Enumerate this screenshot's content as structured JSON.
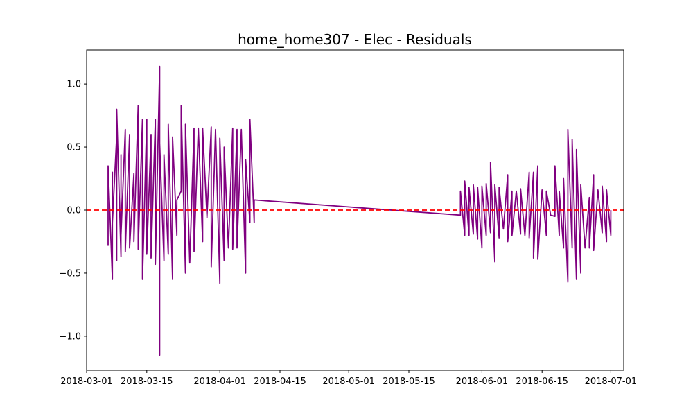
{
  "chart_data": {
    "type": "line",
    "title": "home_home307 - Elec - Residuals",
    "xlabel": "",
    "ylabel": "",
    "x_axis_type": "date",
    "xlim": [
      "2018-03-01",
      "2018-07-04"
    ],
    "ylim": [
      -1.27,
      1.27
    ],
    "x_ticks": [
      "2018-03-01",
      "2018-03-15",
      "2018-04-01",
      "2018-04-15",
      "2018-05-01",
      "2018-05-15",
      "2018-06-01",
      "2018-06-15",
      "2018-07-01"
    ],
    "y_ticks": [
      1.0,
      0.5,
      0.0,
      -0.5,
      -1.0
    ],
    "y_tick_labels": [
      "1.0",
      "0.5",
      "0.0",
      "−0.5",
      "−1.0"
    ],
    "grid": false,
    "series": [
      {
        "color": "#800080",
        "points": [
          [
            "2018-03-06",
            0.0
          ],
          [
            "2018-03-06",
            -0.28
          ],
          [
            "2018-03-06",
            0.35
          ],
          [
            "2018-03-07",
            -0.55
          ],
          [
            "2018-03-07",
            0.3
          ],
          [
            "2018-03-07",
            -0.1
          ],
          [
            "2018-03-08",
            0.59
          ],
          [
            "2018-03-08",
            -0.4
          ],
          [
            "2018-03-08",
            0.8
          ],
          [
            "2018-03-09",
            -0.37
          ],
          [
            "2018-03-09",
            0.44
          ],
          [
            "2018-03-09",
            -0.2
          ],
          [
            "2018-03-10",
            0.64
          ],
          [
            "2018-03-10",
            -0.33
          ],
          [
            "2018-03-11",
            0.6
          ],
          [
            "2018-03-11",
            -0.3
          ],
          [
            "2018-03-12",
            0.29
          ],
          [
            "2018-03-12",
            -0.25
          ],
          [
            "2018-03-13",
            0.83
          ],
          [
            "2018-03-13",
            -0.31
          ],
          [
            "2018-03-14",
            0.72
          ],
          [
            "2018-03-14",
            -0.55
          ],
          [
            "2018-03-15",
            0.72
          ],
          [
            "2018-03-15",
            -0.35
          ],
          [
            "2018-03-16",
            0.6
          ],
          [
            "2018-03-16",
            -0.38
          ],
          [
            "2018-03-17",
            0.72
          ],
          [
            "2018-03-17",
            -0.43
          ],
          [
            "2018-03-18",
            1.14
          ],
          [
            "2018-03-18",
            -1.15
          ],
          [
            "2018-03-18",
            0.53
          ],
          [
            "2018-03-19",
            -0.4
          ],
          [
            "2018-03-19",
            0.44
          ],
          [
            "2018-03-20",
            -0.35
          ],
          [
            "2018-03-20",
            0.68
          ],
          [
            "2018-03-21",
            -0.55
          ],
          [
            "2018-03-21",
            0.58
          ],
          [
            "2018-03-22",
            -0.2
          ],
          [
            "2018-03-22",
            0.08
          ],
          [
            "2018-03-23",
            0.15
          ],
          [
            "2018-03-23",
            0.83
          ],
          [
            "2018-03-24",
            -0.5
          ],
          [
            "2018-03-24",
            0.68
          ],
          [
            "2018-03-25",
            -0.42
          ],
          [
            "2018-03-26",
            0.65
          ],
          [
            "2018-03-26",
            -0.33
          ],
          [
            "2018-03-27",
            0.65
          ],
          [
            "2018-03-28",
            -0.25
          ],
          [
            "2018-03-28",
            0.65
          ],
          [
            "2018-03-29",
            -0.05
          ],
          [
            "2018-03-29",
            -0.06
          ],
          [
            "2018-03-30",
            0.66
          ],
          [
            "2018-03-30",
            -0.45
          ],
          [
            "2018-03-31",
            0.64
          ],
          [
            "2018-04-01",
            -0.58
          ],
          [
            "2018-04-01",
            0.57
          ],
          [
            "2018-04-02",
            -0.4
          ],
          [
            "2018-04-02",
            0.5
          ],
          [
            "2018-04-03",
            -0.3
          ],
          [
            "2018-04-04",
            0.65
          ],
          [
            "2018-04-04",
            -0.31
          ],
          [
            "2018-04-05",
            0.64
          ],
          [
            "2018-04-05",
            -0.3
          ],
          [
            "2018-04-06",
            0.64
          ],
          [
            "2018-04-07",
            -0.5
          ],
          [
            "2018-04-07",
            0.4
          ],
          [
            "2018-04-08",
            -0.1
          ],
          [
            "2018-04-08",
            0.72
          ],
          [
            "2018-04-09",
            -0.1
          ],
          [
            "2018-04-09",
            0.08
          ],
          [
            "2018-05-27",
            -0.04
          ],
          [
            "2018-05-27",
            0.15
          ],
          [
            "2018-05-28",
            -0.2
          ],
          [
            "2018-05-28",
            0.23
          ],
          [
            "2018-05-29",
            -0.2
          ],
          [
            "2018-05-29",
            0.18
          ],
          [
            "2018-05-30",
            -0.19
          ],
          [
            "2018-05-30",
            0.2
          ],
          [
            "2018-05-31",
            -0.23
          ],
          [
            "2018-05-31",
            0.18
          ],
          [
            "2018-06-01",
            -0.3
          ],
          [
            "2018-06-01",
            0.19
          ],
          [
            "2018-06-02",
            -0.2
          ],
          [
            "2018-06-02",
            0.21
          ],
          [
            "2018-06-03",
            -0.18
          ],
          [
            "2018-06-03",
            0.38
          ],
          [
            "2018-06-04",
            -0.41
          ],
          [
            "2018-06-04",
            0.2
          ],
          [
            "2018-06-05",
            -0.22
          ],
          [
            "2018-06-05",
            0.18
          ],
          [
            "2018-06-06",
            -0.15
          ],
          [
            "2018-06-07",
            0.28
          ],
          [
            "2018-06-07",
            -0.25
          ],
          [
            "2018-06-08",
            0.15
          ],
          [
            "2018-06-08",
            -0.2
          ],
          [
            "2018-06-09",
            0.15
          ],
          [
            "2018-06-10",
            -0.19
          ],
          [
            "2018-06-10",
            0.17
          ],
          [
            "2018-06-11",
            -0.2
          ],
          [
            "2018-06-12",
            0.3
          ],
          [
            "2018-06-12",
            -0.22
          ],
          [
            "2018-06-13",
            0.3
          ],
          [
            "2018-06-13",
            -0.38
          ],
          [
            "2018-06-14",
            0.35
          ],
          [
            "2018-06-14",
            -0.39
          ],
          [
            "2018-06-15",
            0.16
          ],
          [
            "2018-06-16",
            -0.2
          ],
          [
            "2018-06-16",
            0.15
          ],
          [
            "2018-06-17",
            -0.04
          ],
          [
            "2018-06-18",
            -0.05
          ],
          [
            "2018-06-18",
            0.35
          ],
          [
            "2018-06-19",
            -0.2
          ],
          [
            "2018-06-19",
            0.15
          ],
          [
            "2018-06-20",
            -0.3
          ],
          [
            "2018-06-20",
            0.25
          ],
          [
            "2018-06-21",
            -0.57
          ],
          [
            "2018-06-21",
            0.64
          ],
          [
            "2018-06-22",
            -0.3
          ],
          [
            "2018-06-22",
            0.56
          ],
          [
            "2018-06-23",
            -0.55
          ],
          [
            "2018-06-23",
            0.48
          ],
          [
            "2018-06-24",
            -0.5
          ],
          [
            "2018-06-24",
            0.2
          ],
          [
            "2018-06-25",
            -0.3
          ],
          [
            "2018-06-26",
            0.1
          ],
          [
            "2018-06-26",
            -0.3
          ],
          [
            "2018-06-27",
            0.28
          ],
          [
            "2018-06-27",
            -0.32
          ],
          [
            "2018-06-28",
            0.16
          ],
          [
            "2018-06-29",
            -0.18
          ],
          [
            "2018-06-29",
            0.19
          ],
          [
            "2018-06-30",
            -0.25
          ],
          [
            "2018-06-30",
            0.16
          ],
          [
            "2018-07-01",
            -0.2
          ],
          [
            "2018-07-01",
            0.0
          ]
        ]
      }
    ],
    "reference_line": {
      "y": 0.0,
      "color": "#ff0000",
      "style": "dashed"
    }
  }
}
